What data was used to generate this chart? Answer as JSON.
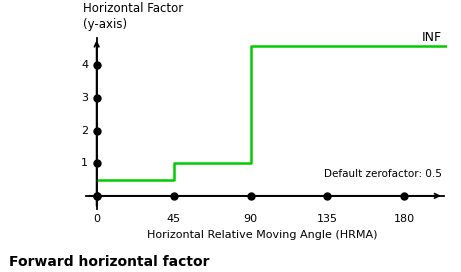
{
  "title": "Forward horizontal factor",
  "ylabel_line1": "Horizontal Factor",
  "ylabel_line2": "(y-axis)",
  "xlabel": "Horizontal Relative Moving Angle (HRMA)",
  "inf_label": "INF",
  "zerofactor_label": "Default zerofactor: 0.5",
  "zerofactor": 0.5,
  "x_ticks": [
    0,
    45,
    90,
    135,
    180
  ],
  "y_ticks": [
    1,
    2,
    3,
    4
  ],
  "line_color": "#00cc00",
  "line_width": 1.8,
  "dot_color": "#000000",
  "dot_size": 5,
  "xlim": [
    -8,
    205
  ],
  "ylim": [
    -0.5,
    5.0
  ],
  "step_x": [
    0,
    45,
    45,
    90,
    90,
    205
  ],
  "step_y": [
    0.5,
    0.5,
    1.0,
    1.0,
    4.6,
    4.6
  ],
  "x_dot_positions": [
    0,
    45,
    90,
    135,
    180
  ],
  "y_dot_positions": [
    0,
    1,
    2,
    3,
    4
  ],
  "bg_color": "#ffffff",
  "axis_lw": 1.3
}
